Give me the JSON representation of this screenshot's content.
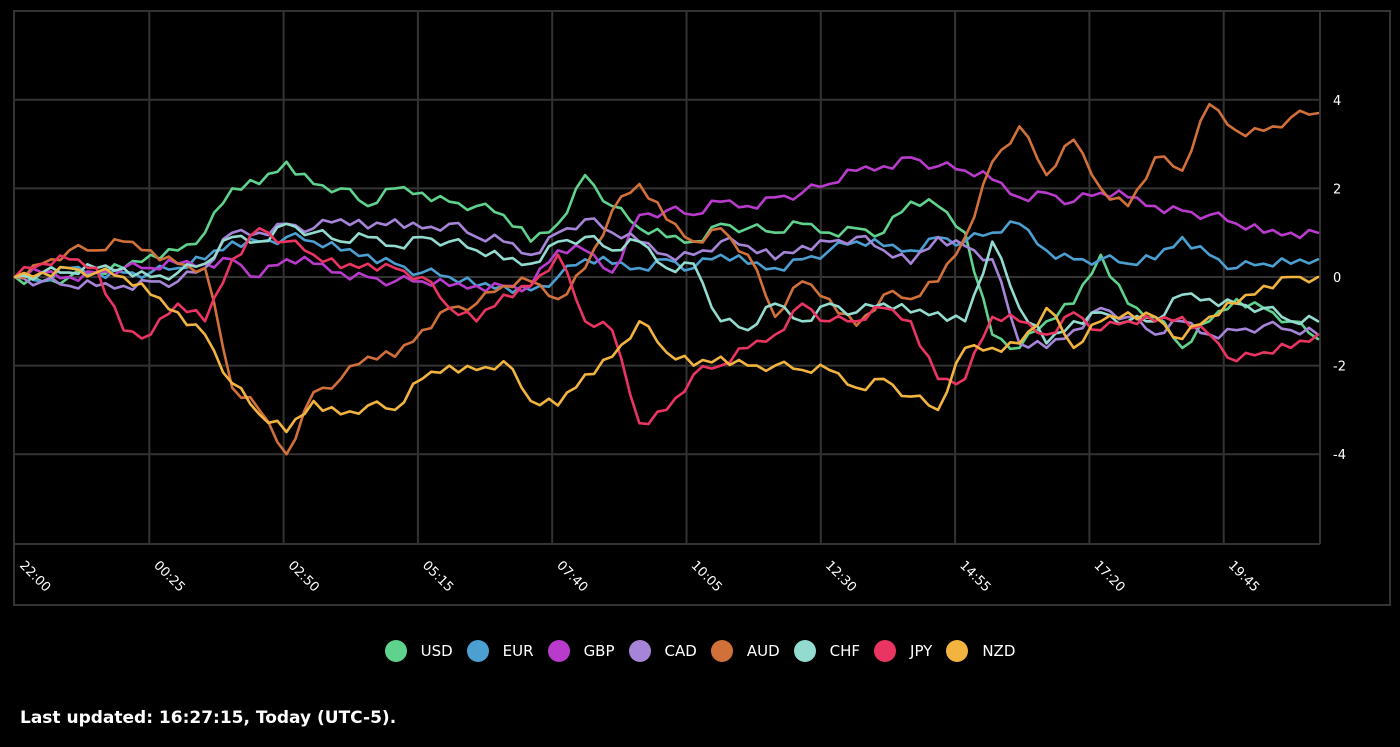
{
  "chart_data": {
    "type": "line",
    "title": "",
    "xlabel": "",
    "ylabel": "",
    "ylim": [
      -6,
      6
    ],
    "y_ticks": [
      4,
      2,
      0,
      -2,
      -4
    ],
    "x_tick_labels": [
      "22:00",
      "00:25",
      "02:50",
      "05:15",
      "07:40",
      "10:05",
      "12:30",
      "14:55",
      "17:20",
      "19:45"
    ],
    "grid": true,
    "legend_position": "bottom",
    "x_count": 49,
    "series": [
      {
        "name": "USD",
        "color": "#5fd38d",
        "values": [
          0,
          -0.1,
          0,
          0.1,
          0.2,
          0.5,
          0.6,
          1.0,
          2.0,
          2.1,
          2.6,
          2.1,
          2.0,
          1.6,
          2.0,
          1.9,
          1.7,
          1.6,
          1.4,
          0.8,
          1.2,
          2.3,
          1.6,
          1.1,
          0.9,
          0.8,
          1.2,
          1.1,
          1.0,
          1.2,
          1.0,
          1.1,
          1.0,
          1.7,
          1.6,
          1.0,
          -1.3,
          -1.6,
          -1.0,
          -0.6,
          0.5,
          -0.6,
          -0.9,
          -1.6,
          -1.0,
          -0.5,
          -0.7,
          -1.0,
          -1.4
        ]
      },
      {
        "name": "EUR",
        "color": "#4b9fd1",
        "values": [
          0,
          -0.1,
          0.2,
          0.1,
          0.1,
          0.1,
          0.2,
          0.4,
          0.8,
          0.8,
          0.9,
          0.8,
          0.6,
          0.5,
          0.3,
          0.1,
          0,
          -0.2,
          -0.2,
          -0.3,
          0,
          0.4,
          0.3,
          0.2,
          0.4,
          0.2,
          0.5,
          0.3,
          0.2,
          0.4,
          0.6,
          0.8,
          0.7,
          0.6,
          0.9,
          0.8,
          1.0,
          1.2,
          0.6,
          0.4,
          0.4,
          0.3,
          0.4,
          0.9,
          0.5,
          0.2,
          0.3,
          0.3,
          0.4
        ]
      },
      {
        "name": "GBP",
        "color": "#b93bcc",
        "values": [
          0,
          0.1,
          0,
          0.1,
          0.2,
          0.2,
          0.3,
          0.3,
          0.4,
          0,
          0.4,
          0.3,
          0.1,
          0,
          -0.1,
          -0.1,
          -0.2,
          -0.2,
          -0.2,
          -0.2,
          0.6,
          0.6,
          0.1,
          1.4,
          1.5,
          1.4,
          1.7,
          1.6,
          1.8,
          1.9,
          2.1,
          2.4,
          2.5,
          2.7,
          2.5,
          2.4,
          2.2,
          1.8,
          1.9,
          1.7,
          1.9,
          1.8,
          1.6,
          1.5,
          1.4,
          1.2,
          1.0,
          1.0,
          1.0
        ]
      },
      {
        "name": "CAD",
        "color": "#a685d8",
        "values": [
          0,
          -0.1,
          -0.2,
          -0.2,
          -0.2,
          -0.1,
          -0.1,
          0.2,
          1.0,
          1.0,
          1.2,
          1.1,
          1.3,
          1.1,
          1.3,
          1.1,
          1.2,
          0.9,
          0.8,
          0.5,
          1.0,
          1.3,
          1.0,
          0.8,
          0.5,
          0.5,
          0.8,
          0.7,
          0.4,
          0.7,
          0.8,
          0.9,
          0.6,
          0.3,
          0.9,
          0.7,
          0.4,
          -1.5,
          -1.6,
          -1.2,
          -0.7,
          -0.9,
          -1.3,
          -1.0,
          -1.3,
          -1.2,
          -1.1,
          -1.2,
          -1.3
        ]
      },
      {
        "name": "AUD",
        "color": "#d2703a",
        "values": [
          0,
          0.3,
          0.6,
          0.6,
          0.8,
          0.6,
          0.3,
          0.2,
          -2.5,
          -3.0,
          -4.0,
          -2.6,
          -2.3,
          -1.8,
          -1.8,
          -1.2,
          -0.7,
          -0.6,
          -0.2,
          -0.1,
          -0.5,
          0.2,
          1.5,
          2.1,
          1.3,
          0.8,
          1.1,
          0.5,
          -0.9,
          -0.1,
          -0.5,
          -1.1,
          -0.4,
          -0.5,
          -0.1,
          0.9,
          2.6,
          3.4,
          2.3,
          3.1,
          2.0,
          1.6,
          2.7,
          2.4,
          3.9,
          3.3,
          3.3,
          3.6,
          3.7
        ]
      },
      {
        "name": "CHF",
        "color": "#93dbcf",
        "values": [
          0,
          0.1,
          0.1,
          0.2,
          0.2,
          0,
          0.1,
          0.3,
          0.9,
          0.8,
          1.2,
          1.0,
          0.8,
          0.9,
          0.7,
          0.9,
          0.8,
          0.6,
          0.4,
          0.3,
          0.8,
          0.9,
          0.6,
          0.8,
          0.2,
          0.3,
          -1.0,
          -1.2,
          -0.6,
          -1.0,
          -0.6,
          -0.8,
          -0.6,
          -0.8,
          -0.8,
          -1.0,
          0.8,
          -0.7,
          -1.5,
          -1.0,
          -0.8,
          -1.0,
          -1.0,
          -0.4,
          -0.5,
          -0.6,
          -0.7,
          -1.0,
          -1.0
        ]
      },
      {
        "name": "JPY",
        "color": "#ea3462",
        "values": [
          0,
          0.3,
          0.4,
          0.2,
          -1.2,
          -1.3,
          -0.6,
          -1.0,
          0.4,
          1.1,
          0.8,
          0.5,
          0.2,
          0.3,
          0.2,
          0,
          -0.7,
          -1.0,
          -0.4,
          -0.2,
          0.5,
          -1.0,
          -1.2,
          -3.3,
          -3.0,
          -2.2,
          -2.0,
          -1.6,
          -1.3,
          -0.6,
          -1.0,
          -1.0,
          -0.7,
          -1.0,
          -2.3,
          -2.3,
          -0.9,
          -1.0,
          -1.3,
          -0.8,
          -1.2,
          -1.0,
          -1.0,
          -0.9,
          -1.3,
          -1.9,
          -1.7,
          -1.6,
          -1.3
        ]
      },
      {
        "name": "NZD",
        "color": "#f2b43f",
        "values": [
          0,
          0.1,
          0.2,
          0.1,
          0,
          -0.4,
          -0.8,
          -1.3,
          -2.4,
          -3.1,
          -3.5,
          -2.8,
          -3.1,
          -2.9,
          -3.0,
          -2.3,
          -2.0,
          -2.1,
          -1.9,
          -2.8,
          -2.9,
          -2.2,
          -1.8,
          -1.0,
          -1.7,
          -2.0,
          -1.8,
          -2.0,
          -2.0,
          -2.1,
          -2.1,
          -2.5,
          -2.3,
          -2.7,
          -3.0,
          -1.6,
          -1.6,
          -1.5,
          -0.7,
          -1.6,
          -1.0,
          -0.8,
          -0.9,
          -1.4,
          -0.9,
          -0.6,
          -0.2,
          0,
          0
        ]
      }
    ]
  },
  "legend": {
    "items": [
      {
        "label": "USD",
        "color": "#5fd38d"
      },
      {
        "label": "EUR",
        "color": "#4b9fd1"
      },
      {
        "label": "GBP",
        "color": "#b93bcc"
      },
      {
        "label": "CAD",
        "color": "#a685d8"
      },
      {
        "label": "AUD",
        "color": "#d2703a"
      },
      {
        "label": "CHF",
        "color": "#93dbcf"
      },
      {
        "label": "JPY",
        "color": "#ea3462"
      },
      {
        "label": "NZD",
        "color": "#f2b43f"
      }
    ]
  },
  "footer": {
    "last_updated": "Last updated: 16:27:15, Today (UTC-5)."
  },
  "colors": {
    "background": "#000000",
    "grid": "#333333",
    "text": "#ffffff"
  }
}
